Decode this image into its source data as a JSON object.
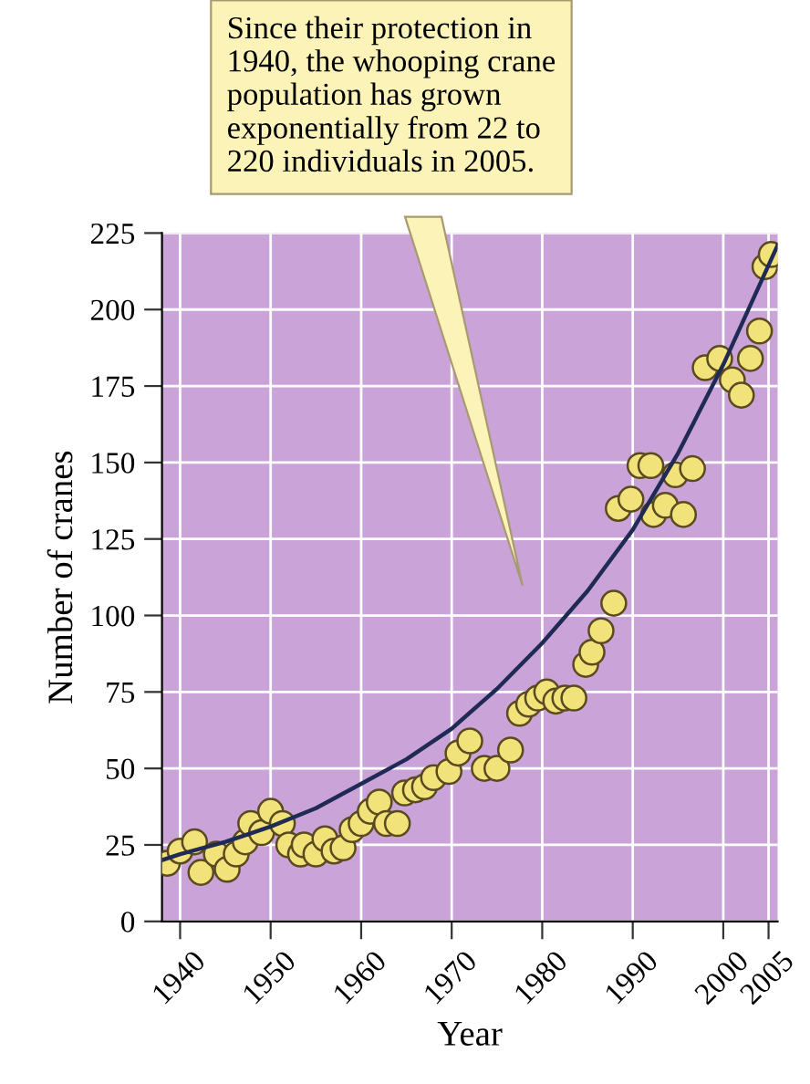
{
  "chart_data": {
    "type": "scatter",
    "xlabel": "Year",
    "ylabel": "Number of cranes",
    "annotations": [
      "Since their protection in 1940, the whooping crane population has grown exponentially from 22 to 220 individuals in 2005."
    ],
    "xlim": [
      1938,
      2006
    ],
    "ylim": [
      0,
      225
    ],
    "xticks": [
      1940,
      1950,
      1960,
      1970,
      1980,
      1990,
      2000,
      2005
    ],
    "yticks": [
      0,
      25,
      50,
      75,
      100,
      125,
      150,
      175,
      200,
      225
    ],
    "grid": true,
    "marker": "circle",
    "series": [
      {
        "color": "#f2e27a",
        "x": [
          1938.6,
          1940,
          1941.6,
          1942.3,
          1944,
          1945.2,
          1946.2,
          1947.2,
          1947.8,
          1949,
          1950,
          1951.3,
          1952,
          1953.3,
          1953.7,
          1955,
          1956,
          1957,
          1958,
          1959,
          1960,
          1961,
          1962,
          1962.8,
          1964,
          1964.8,
          1966,
          1967,
          1968,
          1969.7,
          1970.7,
          1972,
          1973.6,
          1975,
          1976.5,
          1977.5,
          1978.5,
          1979.5,
          1980.5,
          1981.5,
          1982.5,
          1983.5,
          1984.8,
          1985.5,
          1986.5,
          1987.9,
          1988.4,
          1989.8,
          1990.8,
          1992,
          1992.3,
          1993.6,
          1994.7,
          1995.6,
          1996.6,
          1998,
          1999.6,
          2001,
          2002,
          2003,
          2004,
          2004.6,
          2005.3
        ],
        "values": [
          19,
          23,
          26,
          16,
          22,
          17,
          22,
          26,
          32,
          29,
          36,
          32,
          25,
          22,
          25,
          22,
          27,
          23,
          24,
          30,
          32,
          36,
          39,
          32,
          32,
          42,
          43,
          44,
          47,
          49,
          55,
          59,
          50,
          50,
          56,
          68,
          71,
          73,
          75,
          72,
          73,
          73,
          84,
          88,
          95,
          104,
          135,
          138,
          149,
          149,
          133,
          136,
          146,
          133,
          148,
          181,
          184,
          177,
          172,
          184,
          193,
          214,
          218
        ]
      },
      {
        "type": "line",
        "color": "#1f2a55",
        "marker": "none",
        "x": [
          1938,
          1940,
          1945,
          1950,
          1955,
          1960,
          1965,
          1970,
          1975,
          1980,
          1985,
          1990,
          1995,
          2000,
          2006
        ],
        "values": [
          20,
          22,
          26,
          31,
          37,
          45,
          53,
          63,
          76,
          91,
          108,
          128,
          153,
          182,
          221
        ]
      }
    ]
  }
}
